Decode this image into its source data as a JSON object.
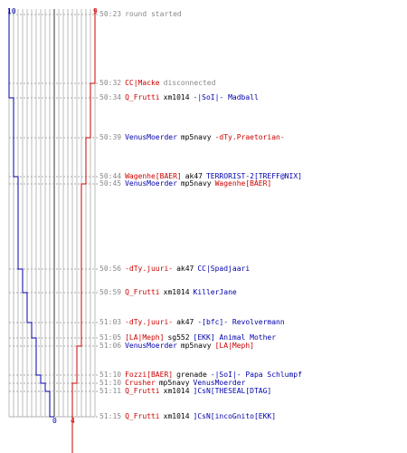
{
  "scores": {
    "blue_start": "10",
    "red_start": "9",
    "blue_end": "0",
    "red_end": "4"
  },
  "events": [
    {
      "time": "50:23",
      "parts": [
        {
          "text": "round started",
          "cls": "note"
        }
      ]
    },
    {
      "time": "50:32",
      "parts": [
        {
          "text": "CC|Macke",
          "cls": "red"
        },
        {
          "text": "disconnected",
          "cls": "note"
        }
      ]
    },
    {
      "time": "50:34",
      "parts": [
        {
          "text": "Q_Frutti",
          "cls": "red"
        },
        {
          "text": "xm1014",
          "cls": "w"
        },
        {
          "text": "-|SoI|- Madball",
          "cls": "blue"
        }
      ]
    },
    {
      "time": "50:39",
      "parts": [
        {
          "text": "VenusMoerder",
          "cls": "blue"
        },
        {
          "text": "mp5navy",
          "cls": "w"
        },
        {
          "text": "-dTy.Praetorian-",
          "cls": "red"
        }
      ]
    },
    {
      "time": "50:44",
      "parts": [
        {
          "text": "Wagenhe[BAER]",
          "cls": "red"
        },
        {
          "text": "ak47",
          "cls": "w"
        },
        {
          "text": "TERRORIST-2[TREFF@NIX]",
          "cls": "blue"
        }
      ]
    },
    {
      "time": "50:45",
      "parts": [
        {
          "text": "VenusMoerder",
          "cls": "blue"
        },
        {
          "text": "mp5navy",
          "cls": "w"
        },
        {
          "text": "Wagenhe[BAER]",
          "cls": "red"
        }
      ]
    },
    {
      "time": "50:56",
      "parts": [
        {
          "text": "-dTy.juuri-",
          "cls": "red"
        },
        {
          "text": "ak47",
          "cls": "w"
        },
        {
          "text": "CC|Spadjaari",
          "cls": "blue"
        }
      ]
    },
    {
      "time": "50:59",
      "parts": [
        {
          "text": "Q_Frutti",
          "cls": "red"
        },
        {
          "text": "xm1014",
          "cls": "w"
        },
        {
          "text": "KillerJane",
          "cls": "blue"
        }
      ]
    },
    {
      "time": "51:03",
      "parts": [
        {
          "text": "-dTy.juuri-",
          "cls": "red"
        },
        {
          "text": "ak47",
          "cls": "w"
        },
        {
          "text": "-[bfc]- Revolvermann",
          "cls": "blue"
        }
      ]
    },
    {
      "time": "51:05",
      "parts": [
        {
          "text": "[LA|Meph]",
          "cls": "red"
        },
        {
          "text": "sg552",
          "cls": "w"
        },
        {
          "text": "[EKK] Animal Mother",
          "cls": "blue"
        }
      ]
    },
    {
      "time": "51:06",
      "parts": [
        {
          "text": "VenusMoerder",
          "cls": "blue"
        },
        {
          "text": "mp5navy",
          "cls": "w"
        },
        {
          "text": "[LA|Meph]",
          "cls": "red"
        }
      ]
    },
    {
      "time": "51:10",
      "parts": [
        {
          "text": "Fozzi[BAER]",
          "cls": "red"
        },
        {
          "text": "grenade",
          "cls": "w"
        },
        {
          "text": "-|SoI|- Papa Schlumpf",
          "cls": "blue"
        }
      ]
    },
    {
      "time": "51:10",
      "parts": [
        {
          "text": "Crusher",
          "cls": "red"
        },
        {
          "text": "mp5navy",
          "cls": "w"
        },
        {
          "text": "VenusMoerder",
          "cls": "blue"
        }
      ]
    },
    {
      "time": "51:11",
      "parts": [
        {
          "text": "Q_Frutti",
          "cls": "red"
        },
        {
          "text": "xm1014",
          "cls": "w"
        },
        {
          "text": "]CsN[THESEAL[DTAG]",
          "cls": "blue"
        }
      ]
    },
    {
      "time": "51:15",
      "parts": [
        {
          "text": "Q_Frutti",
          "cls": "red"
        },
        {
          "text": "xm1014",
          "cls": "w"
        },
        {
          "text": "]CsN[incoGnito[EKK]",
          "cls": "blue"
        }
      ]
    }
  ],
  "colors": {
    "red": "#cc0000",
    "blue": "#0000aa",
    "grid": "#bbbbbb",
    "dash": "#aaaaaa"
  }
}
